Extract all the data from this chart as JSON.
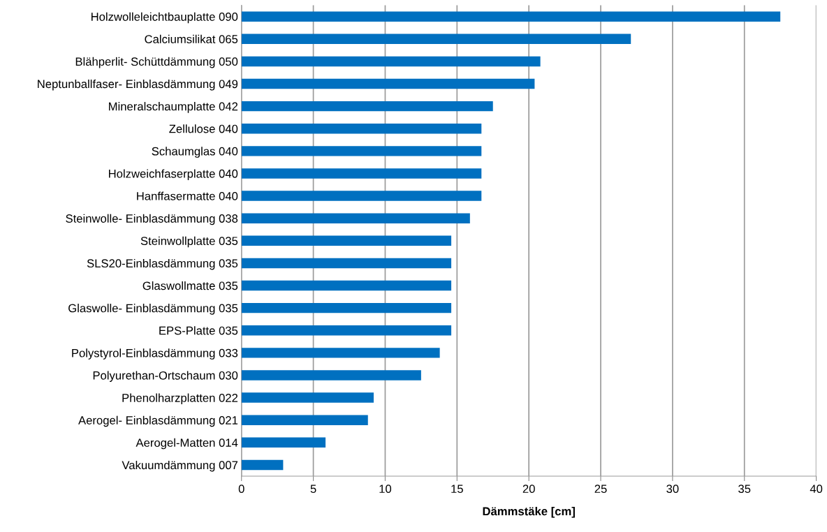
{
  "chart_data": {
    "type": "bar",
    "orientation": "horizontal",
    "xlabel": "Dämmstäke [cm]",
    "categories": [
      "Holzwolleleichtbauplatte 090",
      "Calciumsilikat 065",
      "Blähperlit- Schüttdämmung 050",
      "Neptunballfaser- Einblasdämmung 049",
      "Mineralschaumplatte 042",
      "Zellulose 040",
      "Schaumglas 040",
      "Holzweichfaserplatte 040",
      "Hanffasermatte 040",
      "Steinwolle- Einblasdämmung 038",
      "Steinwollplatte 035",
      "SLS20-Einblasdämmung 035",
      "Glaswollmatte 035",
      "Glaswolle- Einblasdämmung 035",
      "EPS-Platte 035",
      "Polystyrol-Einblasdämmung 033",
      "Polyurethan-Ortschaum 030",
      "Phenolharzplatten 022",
      "Aerogel- Einblasdämmung 021",
      "Aerogel-Matten 014",
      "Vakuumdämmung 007"
    ],
    "values": [
      37.5,
      27.1,
      20.8,
      20.4,
      17.5,
      16.7,
      16.7,
      16.7,
      16.7,
      15.9,
      14.6,
      14.6,
      14.6,
      14.6,
      14.6,
      13.8,
      12.5,
      9.2,
      8.8,
      5.85,
      2.9
    ],
    "color": "#0070c0",
    "xlim": [
      0,
      40
    ],
    "xticks": [
      0,
      5,
      10,
      15,
      20,
      25,
      30,
      35,
      40
    ],
    "grid": "x",
    "legend": false
  }
}
